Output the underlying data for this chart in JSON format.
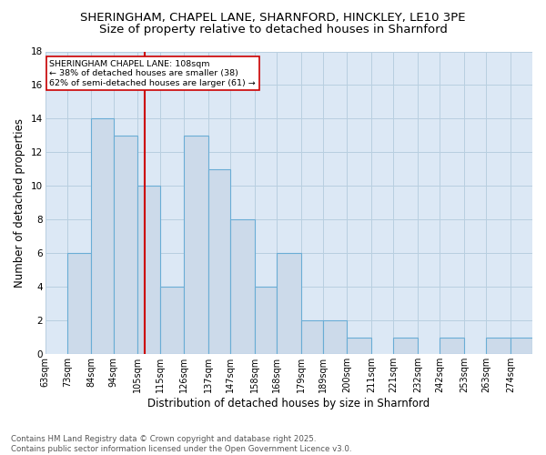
{
  "title_line1": "SHERINGHAM, CHAPEL LANE, SHARNFORD, HINCKLEY, LE10 3PE",
  "title_line2": "Size of property relative to detached houses in Sharnford",
  "xlabel": "Distribution of detached houses by size in Sharnford",
  "ylabel": "Number of detached properties",
  "bin_labels": [
    "63sqm",
    "73sqm",
    "84sqm",
    "94sqm",
    "105sqm",
    "115sqm",
    "126sqm",
    "137sqm",
    "147sqm",
    "158sqm",
    "168sqm",
    "179sqm",
    "189sqm",
    "200sqm",
    "211sqm",
    "221sqm",
    "232sqm",
    "242sqm",
    "253sqm",
    "263sqm",
    "274sqm"
  ],
  "bin_counts": [
    0,
    6,
    14,
    13,
    10,
    4,
    13,
    11,
    8,
    4,
    6,
    2,
    2,
    1,
    0,
    1,
    0,
    1,
    0,
    1,
    1
  ],
  "bin_edges": [
    63,
    73,
    84,
    94,
    105,
    115,
    126,
    137,
    147,
    158,
    168,
    179,
    189,
    200,
    211,
    221,
    232,
    242,
    253,
    263,
    274,
    284
  ],
  "bar_facecolor": "#ccdaea",
  "bar_edgecolor": "#6aadd5",
  "vline_x": 108,
  "vline_color": "#cc0000",
  "annotation_text": "SHERINGHAM CHAPEL LANE: 108sqm\n← 38% of detached houses are smaller (38)\n62% of semi-detached houses are larger (61) →",
  "annotation_box_edgecolor": "#cc0000",
  "annotation_box_facecolor": "white",
  "ylim": [
    0,
    18
  ],
  "yticks": [
    0,
    2,
    4,
    6,
    8,
    10,
    12,
    14,
    16,
    18
  ],
  "grid_color": "#b8cfe0",
  "background_color": "#dce8f5",
  "footer_text": "Contains HM Land Registry data © Crown copyright and database right 2025.\nContains public sector information licensed under the Open Government Licence v3.0.",
  "title_fontsize": 9.5,
  "subtitle_fontsize": 9.5,
  "tick_fontsize": 7,
  "ylabel_fontsize": 8.5,
  "xlabel_fontsize": 8.5,
  "annotation_fontsize": 6.8,
  "footer_fontsize": 6.2
}
